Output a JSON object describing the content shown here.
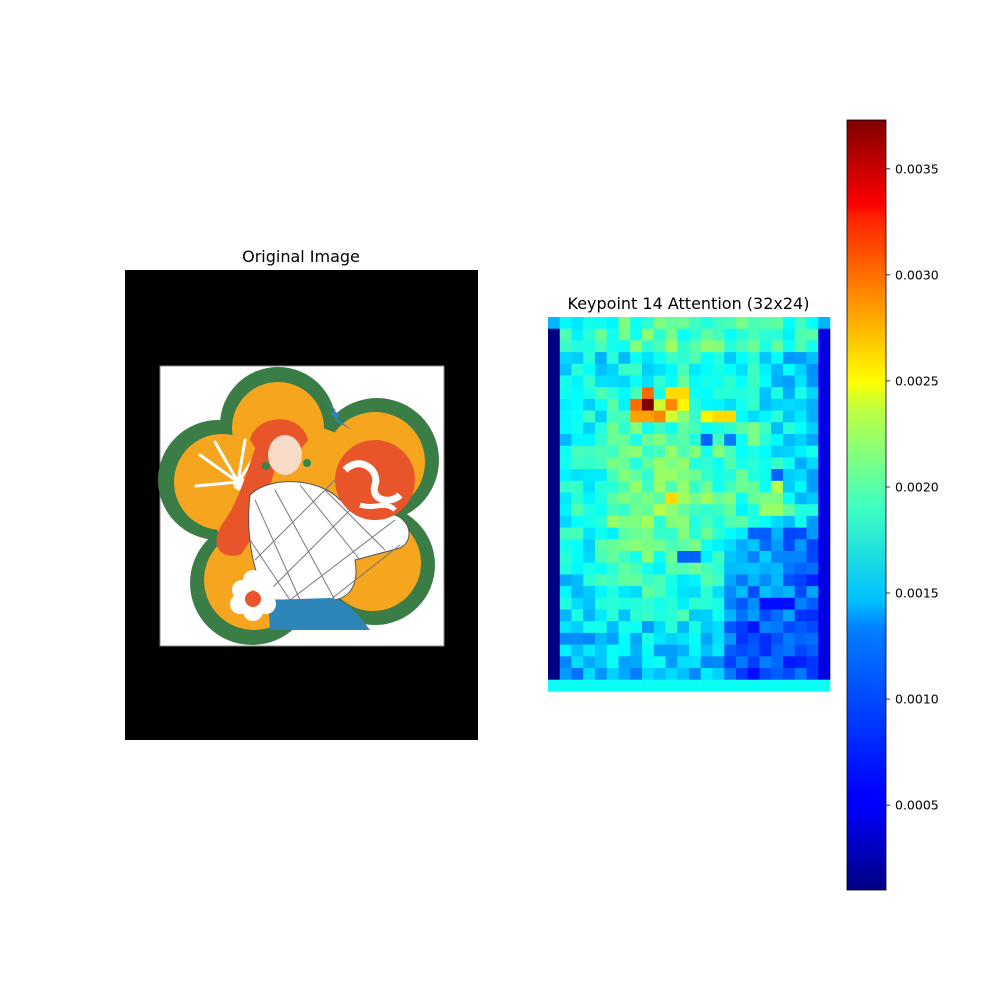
{
  "panels": {
    "left": {
      "title": "Original Image",
      "colors": {
        "background": "#000000",
        "frame": "#ffffff",
        "badge_border": "#3b7d46",
        "badge_fill": "#f5a51e",
        "hair": "#e8552a",
        "skin": "#f8dcc8",
        "jeans": "#2e86b8",
        "ball": "#e8552a"
      }
    },
    "right": {
      "title": "Keypoint 14 Attention (32x24)"
    }
  },
  "chart_data": {
    "type": "heatmap",
    "title": "Keypoint 14 Attention (32x24)",
    "rows": 32,
    "cols": 24,
    "colormap": "jet",
    "vmin": 0.0001,
    "vmax": 0.00373,
    "colorbar_ticks": [
      {
        "value": 0.0005,
        "label": "0.0005"
      },
      {
        "value": 0.001,
        "label": "0.0010"
      },
      {
        "value": 0.0015,
        "label": "0.0015"
      },
      {
        "value": 0.002,
        "label": "0.0020"
      },
      {
        "value": 0.0025,
        "label": "0.0025"
      },
      {
        "value": 0.003,
        "label": "0.0030"
      },
      {
        "value": 0.0035,
        "label": "0.0035"
      }
    ],
    "baseline": 0.00125,
    "column_profile": [
      0.0001,
      0.00095,
      0.0,
      0.0,
      0.0,
      0.0,
      0.0,
      0.0,
      0.0,
      0.0,
      0.0,
      0.0,
      0.0,
      0.0,
      0.0,
      0.0,
      0.0,
      0.0,
      0.0,
      0.0,
      0.0,
      0.0,
      0.00095,
      0.00045
    ],
    "features": [
      {
        "row": 6,
        "col": 8,
        "value": 0.0029
      },
      {
        "row": 6,
        "col": 10,
        "value": 0.0025
      },
      {
        "row": 6,
        "col": 11,
        "value": 0.0025
      },
      {
        "row": 7,
        "col": 7,
        "value": 0.0029
      },
      {
        "row": 7,
        "col": 8,
        "value": 0.00373
      },
      {
        "row": 7,
        "col": 9,
        "value": 0.0022
      },
      {
        "row": 7,
        "col": 10,
        "value": 0.0028
      },
      {
        "row": 7,
        "col": 11,
        "value": 0.0024
      },
      {
        "row": 7,
        "col": 12,
        "value": 0.0016
      },
      {
        "row": 8,
        "col": 7,
        "value": 0.0027
      },
      {
        "row": 8,
        "col": 8,
        "value": 0.0027
      },
      {
        "row": 8,
        "col": 9,
        "value": 0.0028
      },
      {
        "row": 8,
        "col": 10,
        "value": 0.0022
      },
      {
        "row": 8,
        "col": 13,
        "value": 0.0024
      },
      {
        "row": 8,
        "col": 14,
        "value": 0.0025
      },
      {
        "row": 8,
        "col": 15,
        "value": 0.0025
      },
      {
        "row": 9,
        "col": 12,
        "value": 0.0017
      },
      {
        "row": 9,
        "col": 17,
        "value": 0.0019
      },
      {
        "row": 10,
        "col": 13,
        "value": 0.0009
      },
      {
        "row": 10,
        "col": 15,
        "value": 0.001
      },
      {
        "row": 10,
        "col": 17,
        "value": 0.0019
      },
      {
        "row": 13,
        "col": 19,
        "value": 0.0009
      },
      {
        "row": 14,
        "col": 9,
        "value": 0.002
      },
      {
        "row": 14,
        "col": 19,
        "value": 0.0021
      },
      {
        "row": 15,
        "col": 10,
        "value": 0.0025
      },
      {
        "row": 15,
        "col": 18,
        "value": 0.0019
      },
      {
        "row": 15,
        "col": 19,
        "value": 0.0019
      },
      {
        "row": 16,
        "col": 9,
        "value": 0.0021
      },
      {
        "row": 16,
        "col": 18,
        "value": 0.002
      },
      {
        "row": 16,
        "col": 19,
        "value": 0.002
      },
      {
        "row": 16,
        "col": 20,
        "value": 0.0018
      },
      {
        "row": 17,
        "col": 5,
        "value": 0.002
      },
      {
        "row": 17,
        "col": 6,
        "value": 0.0019
      },
      {
        "row": 20,
        "col": 11,
        "value": 0.0009
      },
      {
        "row": 20,
        "col": 12,
        "value": 0.0009
      },
      {
        "row": 22,
        "col": 6,
        "value": 0.0018
      },
      {
        "row": 22,
        "col": 7,
        "value": 0.0018
      },
      {
        "row": 24,
        "col": 18,
        "value": 0.0006
      },
      {
        "row": 24,
        "col": 19,
        "value": 0.0006
      },
      {
        "row": 24,
        "col": 20,
        "value": 0.0006
      }
    ]
  }
}
